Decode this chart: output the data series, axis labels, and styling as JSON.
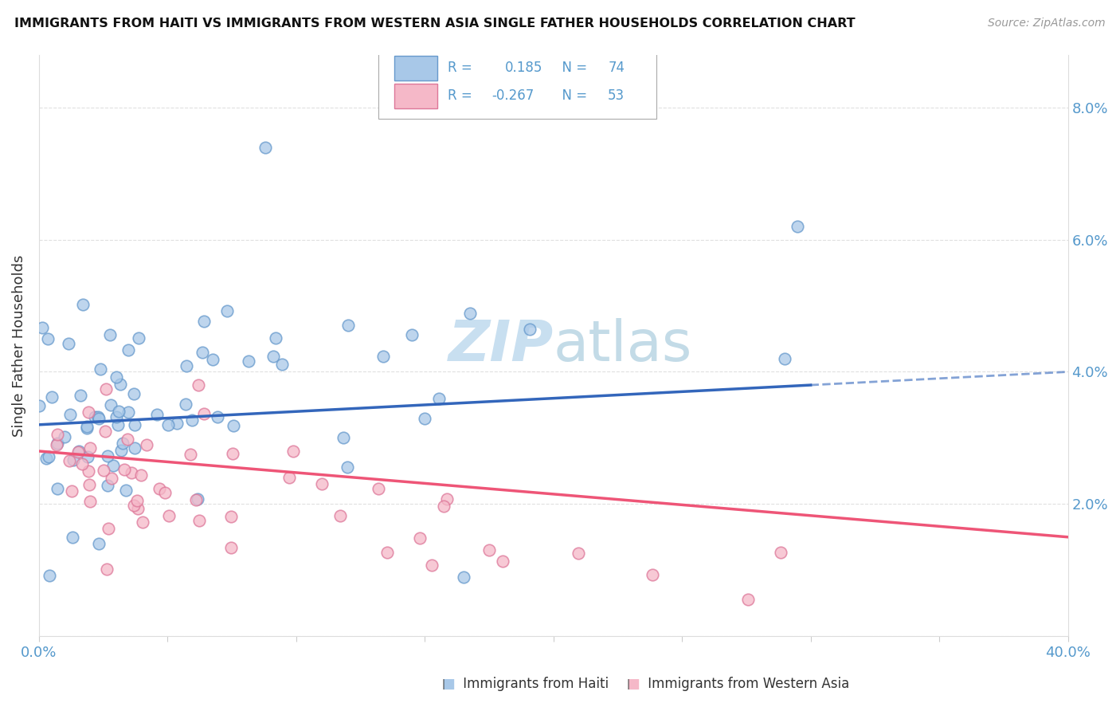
{
  "title": "IMMIGRANTS FROM HAITI VS IMMIGRANTS FROM WESTERN ASIA SINGLE FATHER HOUSEHOLDS CORRELATION CHART",
  "source": "Source: ZipAtlas.com",
  "ylabel": "Single Father Households",
  "xlim": [
    0.0,
    0.4
  ],
  "ylim": [
    0.0,
    0.088
  ],
  "xticks": [
    0.0,
    0.05,
    0.1,
    0.15,
    0.2,
    0.25,
    0.3,
    0.35,
    0.4
  ],
  "yticks": [
    0.0,
    0.02,
    0.04,
    0.06,
    0.08
  ],
  "ytick_labels": [
    "",
    "2.0%",
    "4.0%",
    "6.0%",
    "8.0%"
  ],
  "haiti_R": 0.185,
  "haiti_N": 74,
  "western_asia_R": -0.267,
  "western_asia_N": 53,
  "haiti_fill_color": "#a8c8e8",
  "western_asia_fill_color": "#f5b8c8",
  "haiti_edge_color": "#6699cc",
  "western_asia_edge_color": "#dd7799",
  "haiti_line_color": "#3366bb",
  "western_asia_line_color": "#ee5577",
  "tick_color": "#5599cc",
  "watermark_color": "#c8dff0",
  "legend_text_color": "#5599cc",
  "haiti_line_start_y": 0.032,
  "haiti_line_end_y": 0.038,
  "haiti_line_dash_end_y": 0.04,
  "wa_line_start_y": 0.028,
  "wa_line_end_y": 0.015
}
